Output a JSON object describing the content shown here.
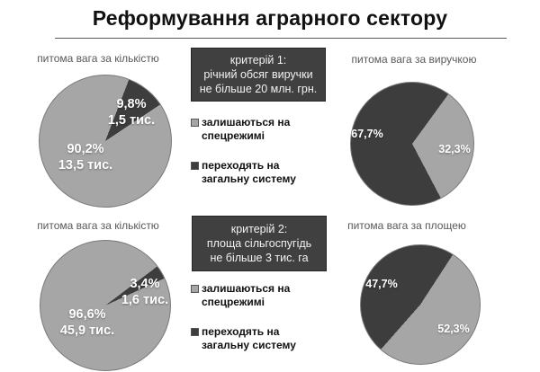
{
  "title": "Реформування аграрного сектору",
  "colors": {
    "light": "#a6a6a6",
    "dark": "#3d3d3d",
    "box_bg": "#404040",
    "box_border": "#262626",
    "title_underline": "#595959",
    "pie_title_text": "#595959",
    "pie_label_text": "#ffffff",
    "legend_text": "#111111"
  },
  "criteria": [
    {
      "lines": [
        "критерій 1:",
        "річний обсяг виручки",
        "не більше 20 млн. грн."
      ]
    },
    {
      "lines": [
        "критерій 2:",
        "площа сільгоспугідь",
        "не більше 3 тис. га"
      ]
    }
  ],
  "legend": {
    "items": [
      {
        "line1": "залишаються на",
        "line2": "спецрежимі",
        "color_key": "light"
      },
      {
        "line1": "переходять на",
        "line2": "загальну систему",
        "color_key": "dark"
      }
    ]
  },
  "chart_data": [
    {
      "type": "pie",
      "title": "питома вага за кількістю",
      "legend_entries": [
        "залишаються на спецрежимі",
        "переходять на загальну систему"
      ],
      "slices": [
        {
          "label": "залишаються на спецрежимі",
          "value": 90.2,
          "display": "90,2%",
          "count_display": "13,5 тис.",
          "color_key": "light"
        },
        {
          "label": "переходять на загальну систему",
          "value": 9.8,
          "display": "9,8%",
          "count_display": "1,5 тис.",
          "color_key": "dark"
        }
      ],
      "dark_start_deg": 21
    },
    {
      "type": "pie",
      "title": "питома вага за виручкою",
      "legend_entries": [
        "залишаються на спецрежимі",
        "переходять на загальну систему"
      ],
      "slices": [
        {
          "label": "залишаються на спецрежимі",
          "value": 32.3,
          "display": "32,3%",
          "color_key": "light"
        },
        {
          "label": "переходять на загальну систему",
          "value": 67.7,
          "display": "67,7%",
          "color_key": "dark"
        }
      ],
      "dark_start_deg": 152.3
    },
    {
      "type": "pie",
      "title": "питома вага за кількістю",
      "legend_entries": [
        "залишаються на спецрежимі",
        "переходять на загальну систему"
      ],
      "slices": [
        {
          "label": "залишаються на спецрежимі",
          "value": 96.6,
          "display": "96,6%",
          "count_display": "45,9 тис.",
          "color_key": "light"
        },
        {
          "label": "переходять на загальну систему",
          "value": 3.4,
          "display": "3,4%",
          "count_display": "1,6 тис.",
          "color_key": "dark"
        }
      ],
      "dark_start_deg": 53
    },
    {
      "type": "pie",
      "title": "питома вага за площею",
      "legend_entries": [
        "залишаються на спецрежимі",
        "переходять на загальну систему"
      ],
      "slices": [
        {
          "label": "залишаються на спецрежимі",
          "value": 52.3,
          "display": "52,3%",
          "color_key": "light"
        },
        {
          "label": "переходять на загальну систему",
          "value": 47.7,
          "display": "47,7%",
          "color_key": "dark"
        }
      ],
      "dark_start_deg": 221.3
    }
  ]
}
